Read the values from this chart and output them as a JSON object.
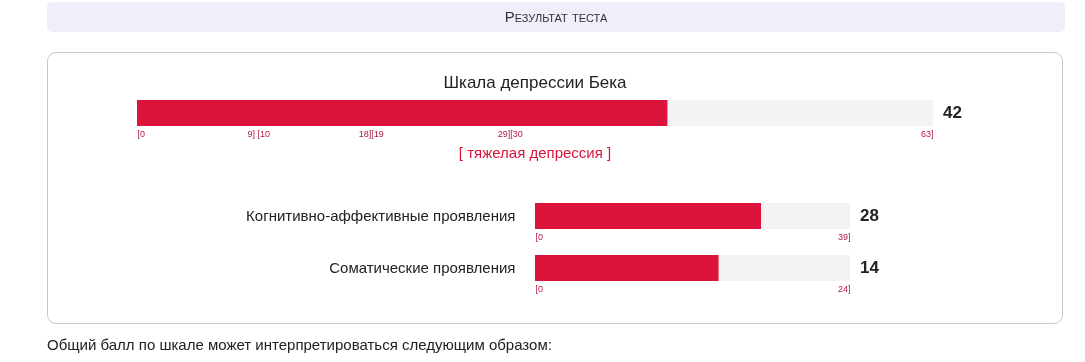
{
  "chart_data": [
    {
      "type": "other",
      "title": "Результат теста"
    },
    {
      "type": "bar",
      "orientation": "horizontal",
      "stacked": true,
      "title": "Шкала депрессии Бека",
      "categories": [
        null
      ],
      "series": [
        {
          "color": "#dc143c",
          "values": [
            42
          ]
        },
        {
          "color": "#f3f3f3",
          "values": [
            21
          ]
        }
      ],
      "xlim": [
        0,
        63
      ],
      "xticks": [
        {
          "value": 0,
          "label": "[0"
        },
        {
          "value": 9,
          "label": "9]"
        },
        {
          "value": 10,
          "label": "[10"
        },
        {
          "value": 18,
          "label": "18]"
        },
        {
          "value": 19,
          "label": "[19"
        },
        {
          "value": 29,
          "label": "29]"
        },
        {
          "value": 30,
          "label": "[30"
        },
        {
          "value": 63,
          "label": "63]"
        }
      ],
      "annotations": [
        {
          "text": "42",
          "x": 63
        },
        "[ тяжелая депрессия ]"
      ]
    },
    {
      "type": "bar",
      "orientation": "horizontal",
      "stacked": true,
      "categories": [
        "Когнитивно-аффективные проявления"
      ],
      "series": [
        {
          "color": "#dc143c",
          "values": [
            28
          ]
        },
        {
          "color": "#f3f3f3",
          "values": [
            11
          ]
        }
      ],
      "xlim": [
        0,
        39
      ],
      "xticks": [
        {
          "value": 0,
          "label": "[0"
        },
        {
          "value": 39,
          "label": "39]"
        }
      ],
      "annotations": [
        {
          "text": "28",
          "x": 39,
          "y": "Когнитивно-аффективные проявления"
        }
      ]
    },
    {
      "type": "bar",
      "orientation": "horizontal",
      "stacked": true,
      "categories": [
        "Соматические проявления"
      ],
      "series": [
        {
          "color": "#dc143c",
          "values": [
            14
          ]
        },
        {
          "color": "#f3f3f3",
          "values": [
            10
          ]
        }
      ],
      "xlim": [
        0,
        24
      ],
      "xticks": [
        {
          "value": 0,
          "label": "[0"
        },
        {
          "value": 24,
          "label": "24]"
        }
      ],
      "annotations": [
        {
          "text": "14",
          "x": 24,
          "y": "Соматические проявления"
        }
      ]
    },
    {
      "type": "other",
      "annotations": [
        "Общий балл по шкале может интерпретироваться следующим образом:"
      ]
    }
  ]
}
